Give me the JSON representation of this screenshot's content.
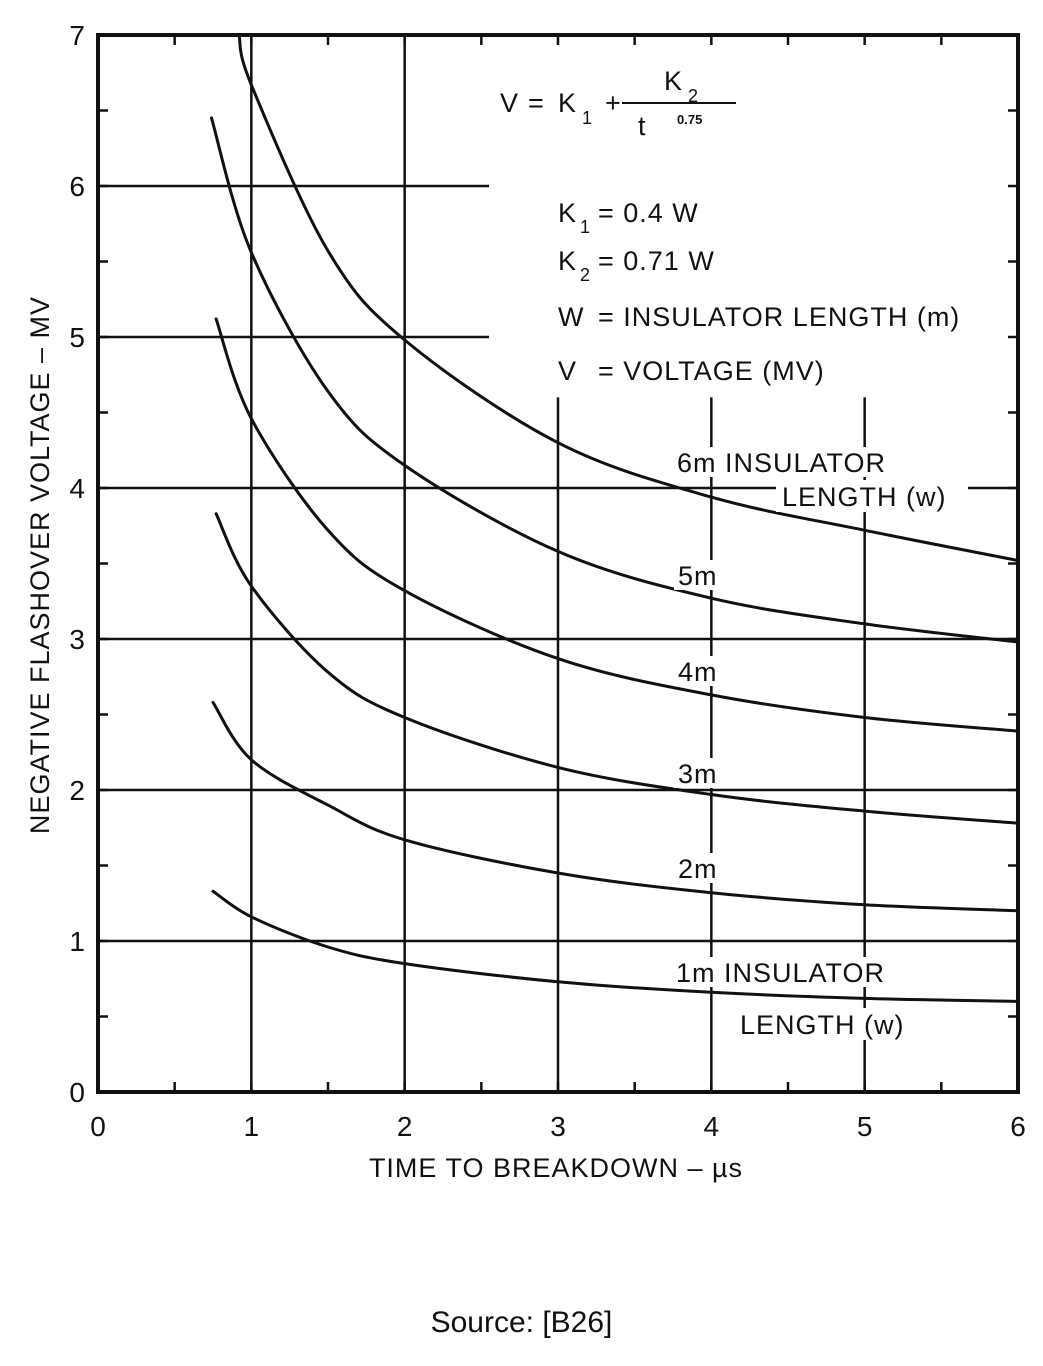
{
  "chart_data": {
    "type": "line",
    "xlabel": "TIME TO BREAKDOWN – µs",
    "ylabel": "NEGATIVE FLASHOVER VOLTAGE – MV",
    "xlim": [
      0,
      6
    ],
    "ylim": [
      0,
      7
    ],
    "x_ticks": [
      "0",
      "1",
      "2",
      "3",
      "4",
      "5",
      "6"
    ],
    "y_ticks": [
      "0",
      "1",
      "2",
      "3",
      "4",
      "5",
      "6",
      "7"
    ],
    "grid": "partial",
    "series": [
      {
        "name": "1m INSULATOR LENGTH (w)",
        "W": 1,
        "points": [
          [
            0.75,
            1.33
          ],
          [
            1,
            1.16
          ],
          [
            1.5,
            0.96
          ],
          [
            2,
            0.85
          ],
          [
            3,
            0.73
          ],
          [
            4,
            0.66
          ],
          [
            5,
            0.62
          ],
          [
            6,
            0.6
          ]
        ]
      },
      {
        "name": "2m",
        "W": 2,
        "points": [
          [
            0.75,
            2.58
          ],
          [
            1,
            2.2
          ],
          [
            1.5,
            1.9
          ],
          [
            2,
            1.67
          ],
          [
            3,
            1.45
          ],
          [
            4,
            1.32
          ],
          [
            5,
            1.24
          ],
          [
            6,
            1.2
          ]
        ]
      },
      {
        "name": "3m",
        "W": 3,
        "points": [
          [
            0.77,
            3.83
          ],
          [
            1,
            3.35
          ],
          [
            1.5,
            2.78
          ],
          [
            2,
            2.48
          ],
          [
            3,
            2.15
          ],
          [
            4,
            1.97
          ],
          [
            5,
            1.86
          ],
          [
            6,
            1.78
          ]
        ]
      },
      {
        "name": "4m",
        "W": 4,
        "points": [
          [
            0.77,
            5.12
          ],
          [
            1,
            4.46
          ],
          [
            1.5,
            3.72
          ],
          [
            2,
            3.32
          ],
          [
            3,
            2.87
          ],
          [
            4,
            2.63
          ],
          [
            5,
            2.48
          ],
          [
            6,
            2.39
          ]
        ]
      },
      {
        "name": "5m",
        "W": 5,
        "points": [
          [
            0.74,
            6.45
          ],
          [
            1,
            5.56
          ],
          [
            1.5,
            4.64
          ],
          [
            2,
            4.15
          ],
          [
            3,
            3.58
          ],
          [
            4,
            3.27
          ],
          [
            5,
            3.1
          ],
          [
            6,
            2.98
          ]
        ]
      },
      {
        "name": "6m INSULATOR LENGTH (w)",
        "W": 6,
        "points": [
          [
            0.92,
            7.0
          ],
          [
            1,
            6.67
          ],
          [
            1.5,
            5.57
          ],
          [
            2,
            4.98
          ],
          [
            3,
            4.3
          ],
          [
            4,
            3.94
          ],
          [
            5,
            3.72
          ],
          [
            6,
            3.52
          ]
        ]
      }
    ],
    "formula": {
      "v": "V",
      "eq": "=",
      "k1": "K",
      "k1_sub": "1",
      "plus": "+",
      "k2": "K",
      "k2_sub": "2",
      "t": "t",
      "exp": "0.75"
    },
    "legend_lines": [
      {
        "sym": "K",
        "sub": "1",
        "text": "= 0.4 W"
      },
      {
        "sym": "K",
        "sub": "2",
        "text": "= 0.71 W"
      },
      {
        "sym": "W",
        "sub": "",
        "text": "= INSULATOR LENGTH (m)"
      },
      {
        "sym": "V",
        "sub": "",
        "text": "= VOLTAGE (MV)"
      }
    ],
    "curve_labels": {
      "six_a": "6m INSULATOR",
      "six_b": "LENGTH (w)",
      "five": "5m",
      "four": "4m",
      "three": "3m",
      "two": "2m",
      "one_a": "1m INSULATOR",
      "one_b": "LENGTH (w)"
    }
  },
  "source": "Source: [B26]"
}
